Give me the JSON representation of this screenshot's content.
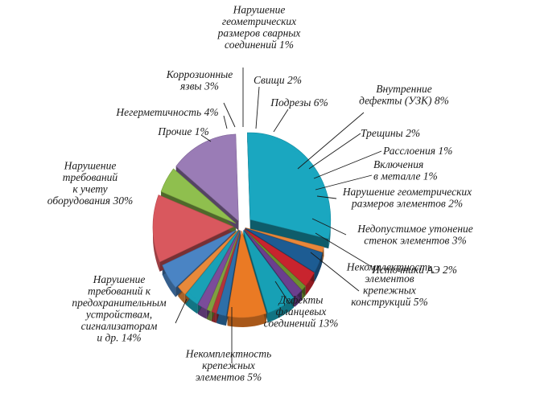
{
  "chart_data": {
    "type": "pie",
    "title": "",
    "unit": "%",
    "slices": [
      {
        "lines": [
          "Нарушение",
          "требований",
          "к  учету",
          "оборудования 30%"
        ],
        "value": 30,
        "color": "#1aa7c0"
      },
      {
        "lines": [
          "Прочие 1%"
        ],
        "value": 1,
        "color": "#e8873a"
      },
      {
        "lines": [
          "Негерметичность 4%"
        ],
        "value": 4,
        "color": "#1d5c93"
      },
      {
        "lines": [
          "Коррозионные",
          "язвы 3%"
        ],
        "value": 3,
        "color": "#c8242e"
      },
      {
        "lines": [
          "Нарушение",
          "геометрических",
          "размеров сварных",
          "соединений 1%"
        ],
        "value": 1,
        "color": "#6e8f2e"
      },
      {
        "lines": [
          "Свищи 2%"
        ],
        "value": 2,
        "color": "#6b3f8e"
      },
      {
        "lines": [
          "Подрезы 6%"
        ],
        "value": 6,
        "color": "#17a0b5"
      },
      {
        "lines": [
          "Внутренние",
          "дефекты (УЗК) 8%"
        ],
        "value": 8,
        "color": "#ea7a24"
      },
      {
        "lines": [
          "Трещины 2%"
        ],
        "value": 2,
        "color": "#2d6fa8"
      },
      {
        "lines": [
          "Расслоения 1%"
        ],
        "value": 1,
        "color": "#b3333b"
      },
      {
        "lines": [
          "Включения",
          "в металле 1%"
        ],
        "value": 1,
        "color": "#7fa040"
      },
      {
        "lines": [
          "Нарушение геометрических",
          "размеров элементов 2%"
        ],
        "value": 2,
        "color": "#7b4c9a"
      },
      {
        "lines": [
          "Недопустимое утонение",
          "стенок элементов 3%"
        ],
        "value": 3,
        "color": "#19a1b6"
      },
      {
        "lines": [
          "Источники АЭ 2%"
        ],
        "value": 2,
        "color": "#e8893a"
      },
      {
        "lines": [
          "Некомплектность",
          "элементов",
          "крепежных",
          "конструкций 5%"
        ],
        "value": 5,
        "color": "#4a84c4"
      },
      {
        "lines": [
          "Дефекты",
          "фланцевых",
          "соединений 13%"
        ],
        "value": 13,
        "color": "#d9585e"
      },
      {
        "lines": [
          "Некомплектность",
          "крепежных",
          "элементов 5%"
        ],
        "value": 5,
        "color": "#8fbf4e"
      },
      {
        "lines": [
          "Нарушение",
          "требований к",
          "предохранительным",
          "устройствам,",
          "сигнализаторам",
          "и др. 14%"
        ],
        "value": 14,
        "color": "#9a7cb6"
      }
    ]
  }
}
